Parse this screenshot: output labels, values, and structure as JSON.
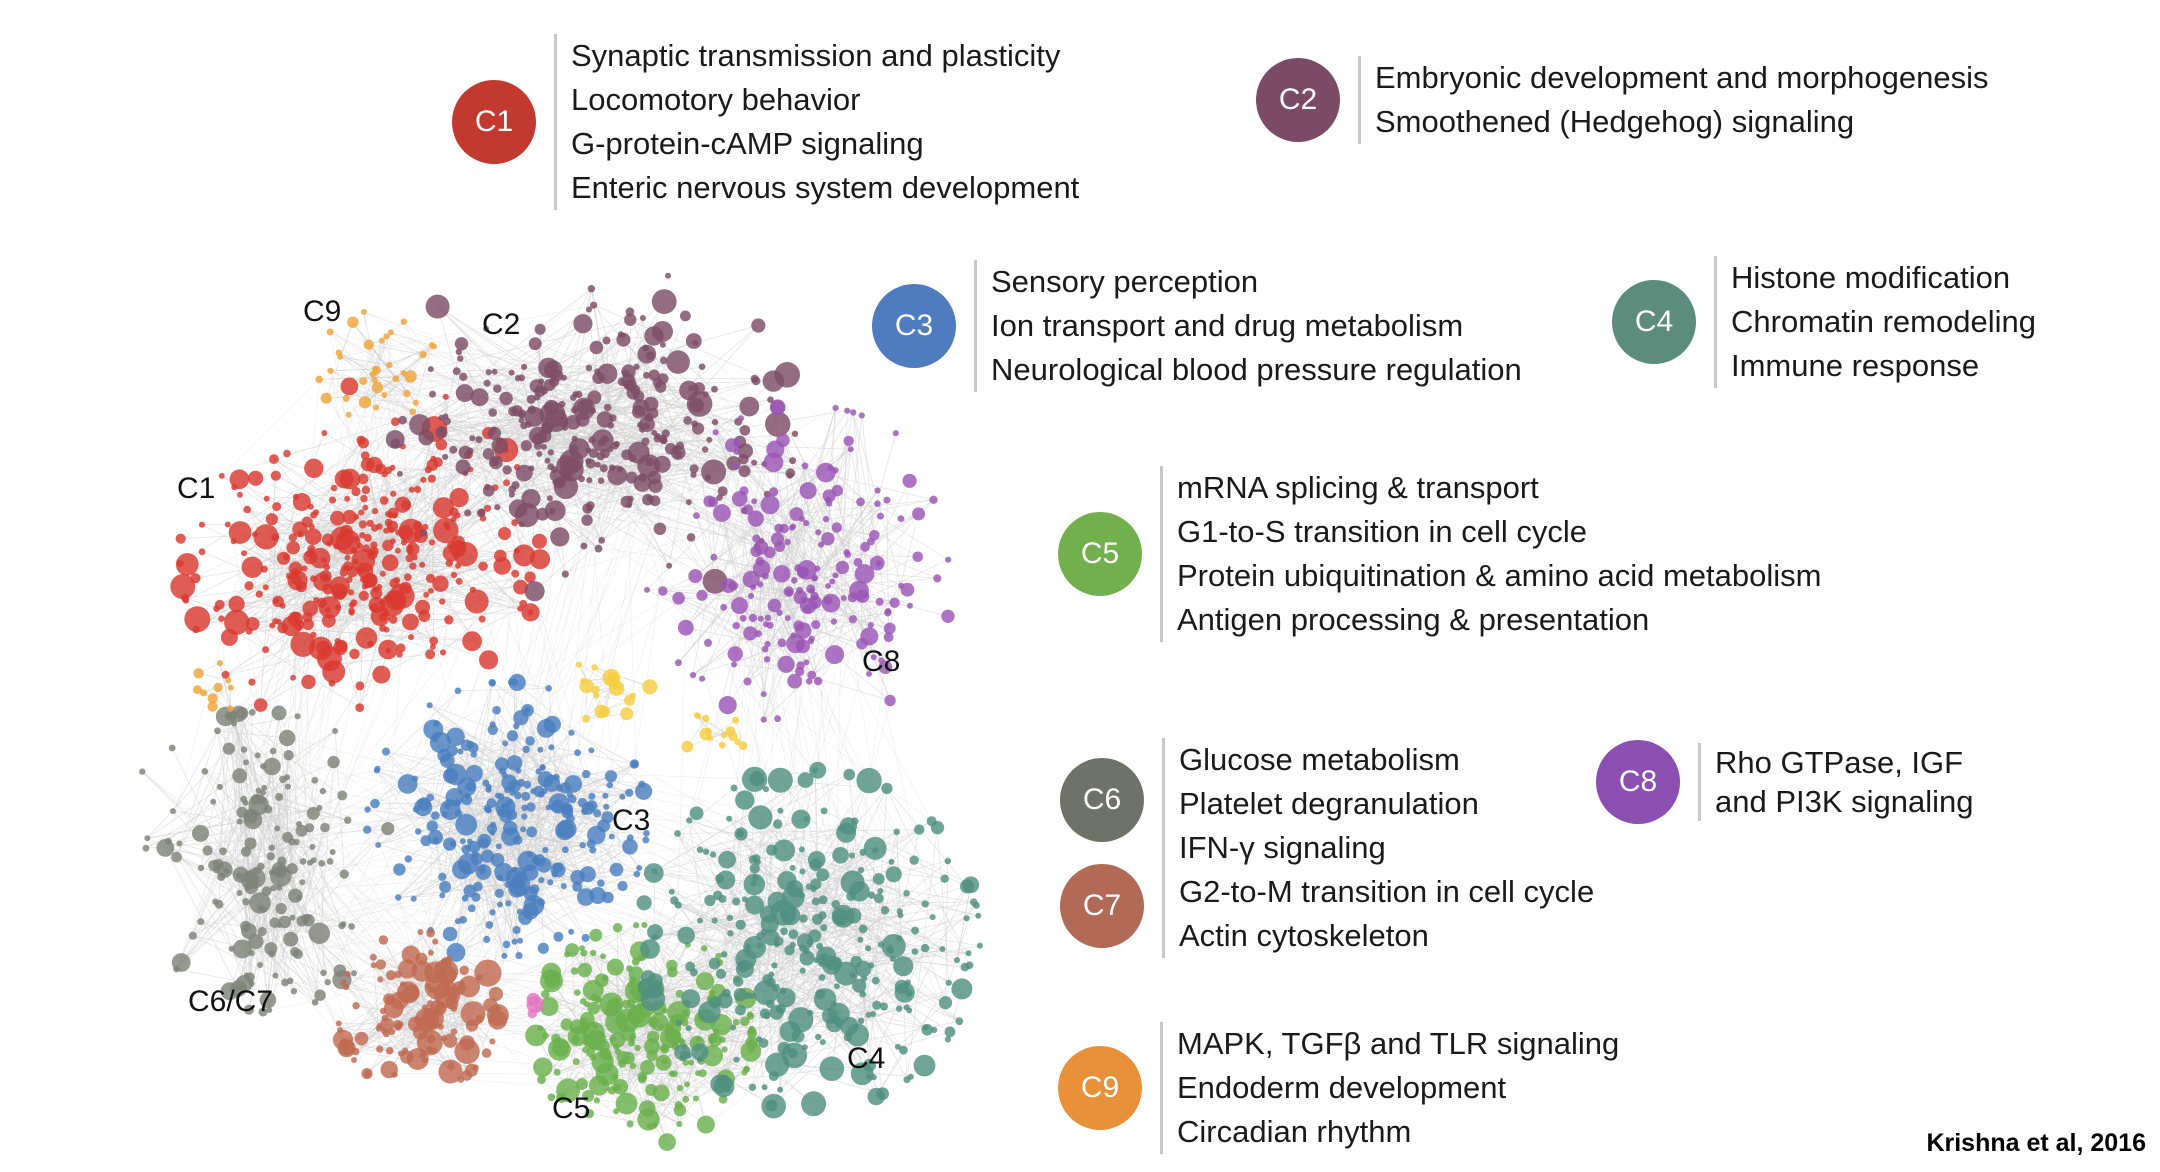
{
  "network": {
    "labels": {
      "c9": "C9",
      "c2": "C2",
      "c1": "C1",
      "c8": "C8",
      "c3": "C3",
      "c6c7": "C6/C7",
      "c4": "C4",
      "c5": "C5"
    },
    "colors": {
      "c1": "#d9392f",
      "c2": "#7e4d66",
      "c3": "#4a7fbf",
      "c4": "#4f9080",
      "c5": "#6ab04c",
      "c6": "#7f8278",
      "c7": "#c06a52",
      "c8": "#9a55b5",
      "c9": "#f0a33a",
      "small_yellow": "#f5cd3f",
      "small_pink": "#e377c2",
      "edge": "#cfcfcf"
    }
  },
  "legend": {
    "c1": {
      "badge": "C1",
      "color": "#c23a2f",
      "terms": [
        "Synaptic transmission and plasticity",
        "Locomotory behavior",
        "G-protein-cAMP signaling",
        "Enteric nervous system development"
      ]
    },
    "c2": {
      "badge": "C2",
      "color": "#7b4a66",
      "terms": [
        "Embryonic development and morphogenesis",
        "Smoothened (Hedgehog) signaling"
      ]
    },
    "c3": {
      "badge": "C3",
      "color": "#4f7bbf",
      "terms": [
        "Sensory perception",
        "Ion transport and drug metabolism",
        "Neurological blood pressure regulation"
      ]
    },
    "c4": {
      "badge": "C4",
      "color": "#5b8c7c",
      "terms": [
        "Histone modification",
        "Chromatin remodeling",
        "Immune response"
      ]
    },
    "c5": {
      "badge": "C5",
      "color": "#72b04e",
      "terms": [
        "mRNA splicing & transport",
        "G1-to-S transition in cell cycle",
        "Protein ubiquitination & amino acid metabolism",
        "Antigen processing & presentation"
      ]
    },
    "c6": {
      "badge": "C6",
      "color": "#6f7269"
    },
    "c7": {
      "badge": "C7",
      "color": "#b06a55"
    },
    "c6c7_terms": [
      "Glucose metabolism",
      "Platelet degranulation",
      "IFN-γ signaling",
      "G2-to-M transition in cell cycle",
      "Actin cytoskeleton"
    ],
    "c8": {
      "badge": "C8",
      "color": "#8a4fb0",
      "terms": [
        "Rho GTPase, IGF",
        "and PI3K signaling"
      ]
    },
    "c9": {
      "badge": "C9",
      "color": "#e8913a",
      "terms": [
        "MAPK, TGFβ and TLR signaling",
        "Endoderm development",
        "Circadian rhythm"
      ]
    }
  },
  "citation": "Krishna et al, 2016"
}
